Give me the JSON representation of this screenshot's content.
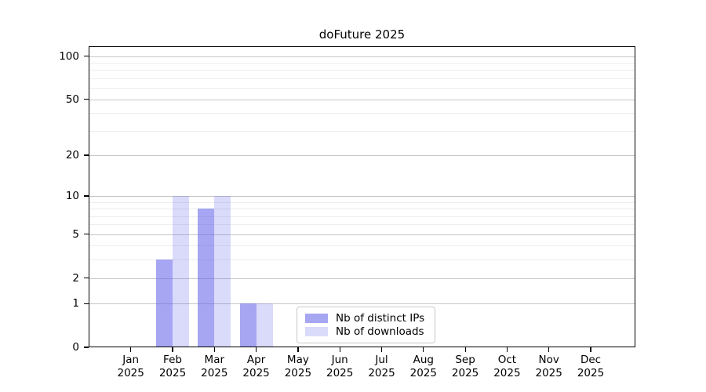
{
  "chart_data": {
    "type": "bar",
    "title": "doFuture 2025",
    "xlabel": "",
    "ylabel": "",
    "x": {
      "months": [
        "Jan",
        "Feb",
        "Mar",
        "Apr",
        "May",
        "Jun",
        "Jul",
        "Aug",
        "Sep",
        "Oct",
        "Nov",
        "Dec"
      ],
      "year": "2025"
    },
    "series": [
      {
        "name": "Nb of distinct IPs",
        "color": "rgba(102,102,235,0.58)",
        "values": [
          0,
          3,
          8,
          1,
          0,
          0,
          0,
          0,
          0,
          0,
          0,
          0
        ]
      },
      {
        "name": "Nb of downloads",
        "color": "rgba(102,102,235,0.24)",
        "values": [
          0,
          10,
          10,
          1,
          0,
          0,
          0,
          0,
          0,
          0,
          0,
          0
        ]
      }
    ],
    "yscale": "log1p",
    "yticks": [
      0,
      1,
      2,
      5,
      10,
      20,
      50,
      100
    ],
    "minor_yticks": [
      3,
      4,
      6,
      7,
      8,
      9,
      30,
      40,
      60,
      70,
      80,
      90
    ],
    "ylim": [
      0,
      117
    ],
    "grid": true,
    "legend_position": "inside bottom, center-right"
  },
  "colors": {
    "major_grid": "#c6c6c6",
    "minor_grid": "#ededed",
    "axis": "#000000",
    "background": "#ffffff"
  }
}
